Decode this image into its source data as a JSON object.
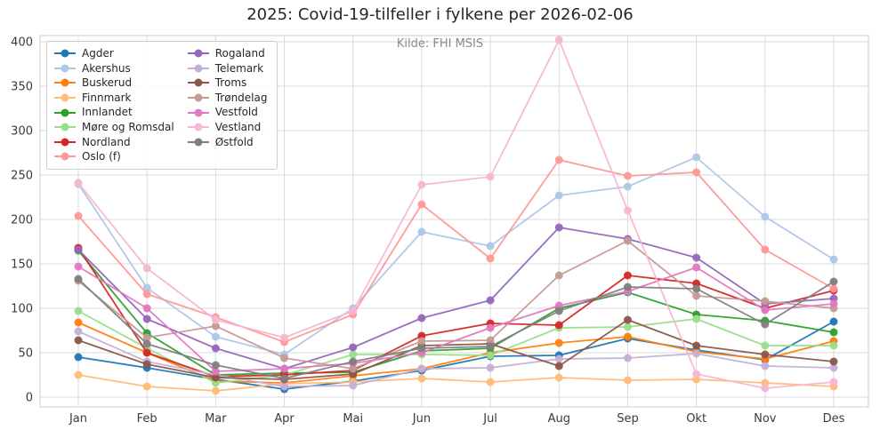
{
  "chart_data": {
    "type": "line",
    "title": "2025: Covid-19-tilfeller i fylkene per 2026-02-06",
    "subtitle": "Kilde: FHI MSIS",
    "xlabel": "",
    "ylabel": "",
    "categories": [
      "Jan",
      "Feb",
      "Mar",
      "Apr",
      "Mai",
      "Jun",
      "Jul",
      "Aug",
      "Sep",
      "Okt",
      "Nov",
      "Des"
    ],
    "yticks": [
      0,
      50,
      100,
      150,
      200,
      250,
      300,
      350,
      400
    ],
    "ylim": [
      -13,
      422
    ],
    "grid": true,
    "legend_position": "upper left",
    "legend_columns": 2,
    "series": [
      {
        "name": "Agder",
        "color": "#1f77b4",
        "values": [
          45,
          33,
          20,
          9,
          18,
          30,
          46,
          47,
          66,
          53,
          42,
          85
        ]
      },
      {
        "name": "Akershus",
        "color": "#aec7e8",
        "values": [
          240,
          123,
          68,
          48,
          100,
          186,
          170,
          227,
          237,
          270,
          203,
          155
        ]
      },
      {
        "name": "Buskerud",
        "color": "#ff7f0e",
        "values": [
          84,
          50,
          18,
          16,
          24,
          32,
          50,
          61,
          68,
          51,
          43,
          63
        ]
      },
      {
        "name": "Finnmark",
        "color": "#ffbb78",
        "values": [
          25,
          12,
          7,
          15,
          17,
          21,
          17,
          22,
          19,
          20,
          16,
          12
        ]
      },
      {
        "name": "Innlandet",
        "color": "#2ca02c",
        "values": [
          165,
          72,
          25,
          27,
          28,
          52,
          55,
          100,
          118,
          93,
          86,
          73
        ]
      },
      {
        "name": "Møre og Romsdal",
        "color": "#98df8a",
        "values": [
          97,
          55,
          16,
          25,
          48,
          48,
          47,
          78,
          79,
          88,
          58,
          58
        ]
      },
      {
        "name": "Nordland",
        "color": "#d62728",
        "values": [
          168,
          50,
          23,
          25,
          30,
          69,
          83,
          81,
          137,
          128,
          100,
          120
        ]
      },
      {
        "name": "Oslo (f)",
        "color": "#ff9896",
        "values": [
          204,
          116,
          90,
          62,
          93,
          217,
          156,
          267,
          249,
          253,
          166,
          122
        ]
      },
      {
        "name": "Rogaland",
        "color": "#9467bd",
        "values": [
          166,
          88,
          55,
          32,
          56,
          89,
          109,
          191,
          178,
          157,
          105,
          111
        ]
      },
      {
        "name": "Telemark",
        "color": "#c5b0d5",
        "values": [
          74,
          40,
          25,
          12,
          13,
          32,
          33,
          43,
          44,
          49,
          35,
          33
        ]
      },
      {
        "name": "Troms",
        "color": "#8c564b",
        "values": [
          64,
          37,
          22,
          20,
          26,
          58,
          60,
          35,
          87,
          58,
          48,
          40
        ]
      },
      {
        "name": "Trøndelag",
        "color": "#c49c94",
        "values": [
          131,
          67,
          80,
          44,
          32,
          63,
          64,
          137,
          176,
          114,
          108,
          100
        ]
      },
      {
        "name": "Vestfold",
        "color": "#e377c2",
        "values": [
          147,
          100,
          29,
          32,
          38,
          50,
          78,
          103,
          119,
          146,
          98,
          105
        ]
      },
      {
        "name": "Vestland",
        "color": "#f7b6d2",
        "values": [
          241,
          145,
          87,
          67,
          97,
          239,
          248,
          402,
          210,
          26,
          10,
          17
        ]
      },
      {
        "name": "Østfold",
        "color": "#7f7f7f",
        "values": [
          133,
          60,
          36,
          21,
          40,
          55,
          57,
          97,
          124,
          122,
          82,
          130
        ]
      }
    ],
    "style": {
      "grid_color": "#d9d9d9",
      "spine_color": "#cccccc",
      "tick_color": "#3b3b3b",
      "title_color": "#262626",
      "subtitle_color": "#8a8a8a",
      "line_width": 1.8,
      "marker_radius": 4.5
    }
  }
}
